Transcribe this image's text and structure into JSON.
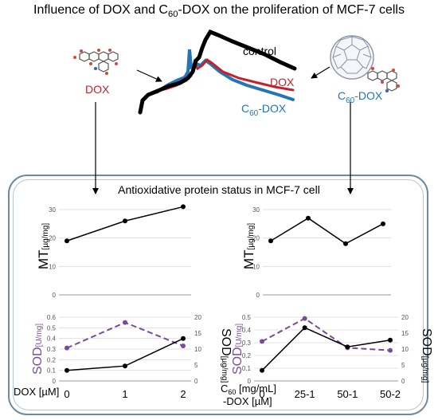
{
  "title": {
    "pre": "Influence of DOX and C",
    "sub": "60",
    "post": "-DOX on the proliferation of MCF-7 cells"
  },
  "labels": {
    "dox": "DOX",
    "c60_pre": "C",
    "c60_sub": "60",
    "c60_post": "-DOX"
  },
  "growth_curves": {
    "control": "control",
    "dox": "DOX",
    "c60_pre": "C",
    "c60_sub": "60",
    "c60_post": "-DOX",
    "colors": {
      "control": "#000000",
      "dox": "#c8202a",
      "c60dox": "#2474b6"
    }
  },
  "panel_title": "Antioxidative protein status in MCF-7 cell",
  "axes": {
    "mt_label": "MT",
    "mt_unit": "[µg/mg]",
    "sod_label": "SOD",
    "sod_left_unit": "[U/mg]",
    "sod_right_unit": "[µg/mg]",
    "dox_xlabel": "DOX [µM]",
    "c60_xlabel_pre": "C",
    "c60_xlabel_sub": "60",
    "c60_xlabel_post": " [mg/mL]",
    "c60_xlabel_line2": "-DOX [µM]"
  },
  "chart_data": [
    {
      "type": "line",
      "id": "mt-dox",
      "categories": [
        "0",
        "1",
        "2"
      ],
      "series": [
        {
          "values": [
            19,
            26,
            31
          ],
          "color": "#000000"
        }
      ],
      "ylabel": "MT [µg/mg]",
      "ylim": [
        0,
        30
      ],
      "yticks": [
        "0",
        "10",
        "20",
        "30"
      ]
    },
    {
      "type": "line",
      "id": "mt-c60dox",
      "categories": [
        "0",
        "25-1",
        "50-1",
        "50-2"
      ],
      "series": [
        {
          "values": [
            19,
            27,
            18,
            25
          ],
          "color": "#000000"
        }
      ],
      "ylabel": "MT [µg/mg]",
      "ylim": [
        0,
        30
      ],
      "yticks": [
        "0",
        "10",
        "20",
        "30"
      ]
    },
    {
      "type": "line",
      "id": "sod-dox",
      "categories": [
        "0",
        "1",
        "2"
      ],
      "series": [
        {
          "values": [
            0.31,
            0.55,
            0.33
          ],
          "axis": "left",
          "color": "#7a4a9a",
          "dash": true
        },
        {
          "values": [
            3.3,
            4.7,
            13.3
          ],
          "axis": "right",
          "color": "#000000"
        }
      ],
      "ylabel": "SOD [U/mg]",
      "y2label": "SOD [µg/mg]",
      "ylim": [
        0,
        0.6
      ],
      "y2lim": [
        0,
        20
      ],
      "yticks": [
        "0",
        "0.1",
        "0.2",
        "0.3",
        "0.4",
        "0.5",
        "0.6"
      ],
      "y2ticks": [
        "0",
        "5",
        "10",
        "15",
        "20"
      ]
    },
    {
      "type": "line",
      "id": "sod-c60dox",
      "categories": [
        "0",
        "25-1",
        "50-1",
        "50-2"
      ],
      "series": [
        {
          "values": [
            0.31,
            0.49,
            0.26,
            0.24
          ],
          "axis": "left",
          "color": "#7a4a9a",
          "dash": true
        },
        {
          "values": [
            3.3,
            16.7,
            10.7,
            12.8
          ],
          "axis": "right",
          "color": "#000000"
        }
      ],
      "ylabel": "SOD [U/mg]",
      "y2label": "SOD [µg/mg]",
      "ylim": [
        0,
        0.5
      ],
      "y2lim": [
        0,
        20
      ],
      "yticks": [
        "0",
        "0.1",
        "0.2",
        "0.3",
        "0.4",
        "0.5"
      ],
      "y2ticks": [
        "0",
        "5",
        "10",
        "15",
        "20"
      ]
    }
  ]
}
